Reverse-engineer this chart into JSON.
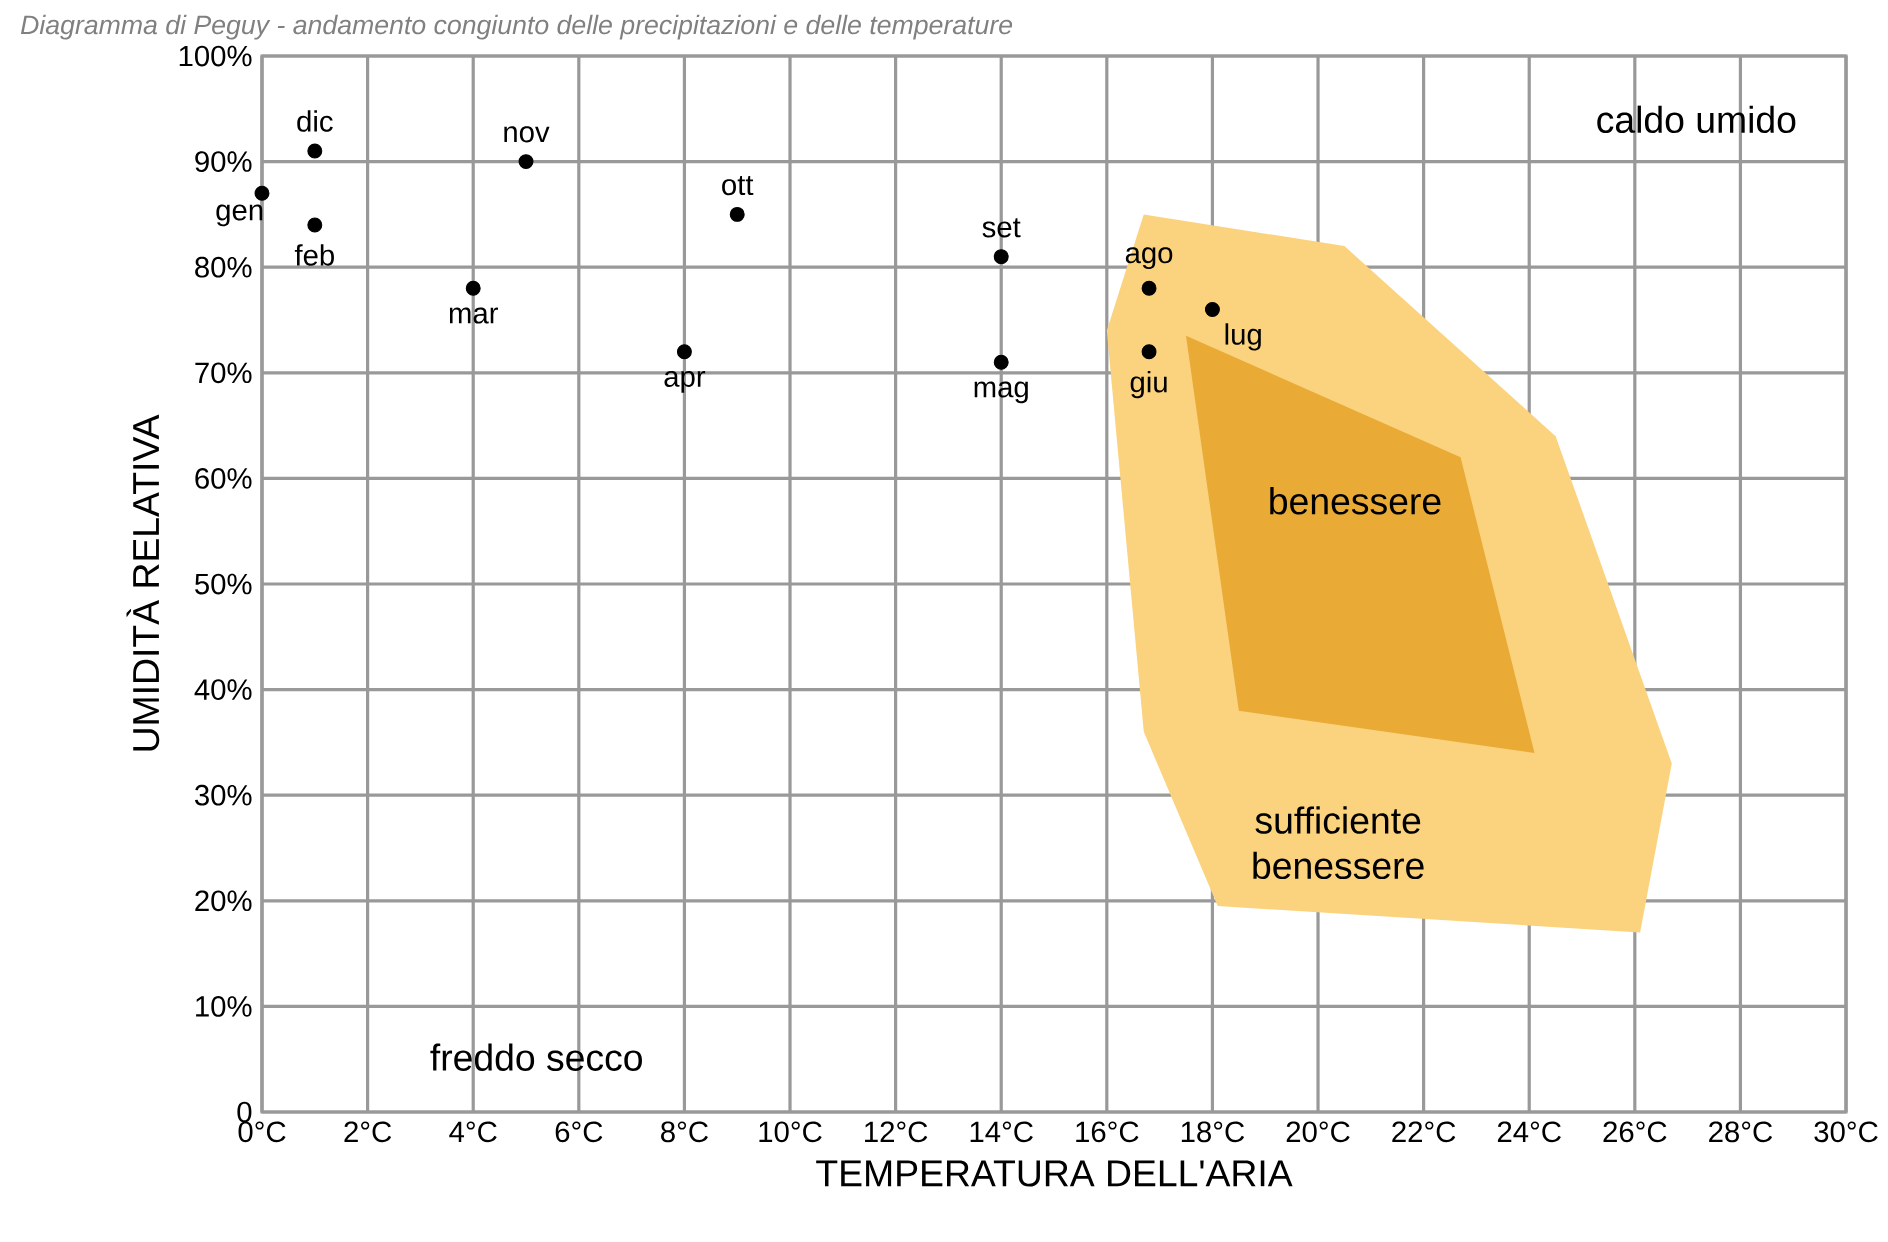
{
  "chart_data": {
    "type": "scatter",
    "title": "Diagramma di Peguy - andamento congiunto delle precipitazioni e delle temperature",
    "xlabel": "TEMPERATURA DELL'ARIA",
    "ylabel": "UMIDITÀ RELATIVA",
    "xlim": [
      0,
      30
    ],
    "ylim": [
      0,
      100
    ],
    "xticks": [
      {
        "value": 0,
        "label": "0°C"
      },
      {
        "value": 2,
        "label": "2°C"
      },
      {
        "value": 4,
        "label": "4°C"
      },
      {
        "value": 6,
        "label": "6°C"
      },
      {
        "value": 8,
        "label": "8°C"
      },
      {
        "value": 10,
        "label": "10°C"
      },
      {
        "value": 12,
        "label": "12°C"
      },
      {
        "value": 14,
        "label": "14°C"
      },
      {
        "value": 16,
        "label": "16°C"
      },
      {
        "value": 18,
        "label": "18°C"
      },
      {
        "value": 20,
        "label": "20°C"
      },
      {
        "value": 22,
        "label": "22°C"
      },
      {
        "value": 24,
        "label": "24°C"
      },
      {
        "value": 26,
        "label": "26°C"
      },
      {
        "value": 28,
        "label": "28°C"
      },
      {
        "value": 30,
        "label": "30°C"
      }
    ],
    "yticks": [
      0,
      {
        "value": 10,
        "label": "10%"
      },
      {
        "value": 20,
        "label": "20%"
      },
      {
        "value": 30,
        "label": "30%"
      },
      {
        "value": 40,
        "label": "40%"
      },
      {
        "value": 50,
        "label": "50%"
      },
      {
        "value": 60,
        "label": "60%"
      },
      {
        "value": 70,
        "label": "70%"
      },
      {
        "value": 80,
        "label": "80%"
      },
      {
        "value": 90,
        "label": "90%"
      },
      {
        "value": 100,
        "label": "100%"
      }
    ],
    "grid": true,
    "series": [
      {
        "type": "area",
        "name": "sufficiente benessere",
        "color": "#fbd27e",
        "x": [
          16.7,
          20.5,
          24.5,
          26.7,
          26.1,
          18.1,
          16.7,
          16.0
        ],
        "values": [
          85,
          82,
          64,
          33,
          17,
          19.5,
          36,
          74
        ]
      },
      {
        "type": "area",
        "name": "benessere",
        "color": "#e9aa36",
        "x": [
          17.5,
          22.7,
          24.1,
          18.5
        ],
        "values": [
          73.5,
          62,
          34,
          38
        ]
      },
      {
        "type": "scatter",
        "color": "#000000",
        "x": [
          0,
          1,
          4,
          8,
          14,
          16.8,
          18,
          16.8,
          14,
          9,
          5,
          1
        ],
        "values": [
          87,
          84,
          78,
          72,
          71,
          72,
          76,
          78,
          81,
          85,
          90,
          91
        ],
        "value_labels": [
          "gen",
          "feb",
          "mar",
          "apr",
          "mag",
          "giu",
          "lug",
          "ago",
          "set",
          "ott",
          "nov",
          "dic"
        ]
      }
    ],
    "annotations": [
      "caldo umido",
      "freddo secco"
    ]
  }
}
